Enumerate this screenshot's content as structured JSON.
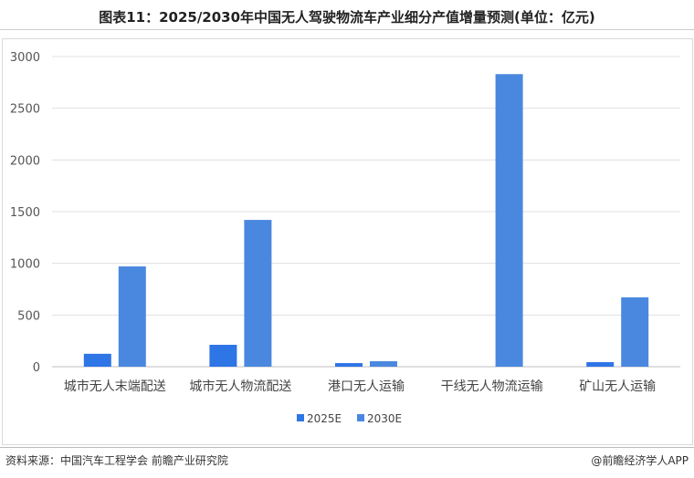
{
  "title": "图表11：2025/2030年中国无人驾驶物流车产业细分产值增量预测(单位：亿元)",
  "source": "资料来源：中国汽车工程学会 前瞻产业研究院",
  "brand": "@前瞻经济学人APP",
  "watermark": "前瞻产业研究院",
  "chart_data": {
    "type": "bar",
    "title": "图表11：2025/2030年中国无人驾驶物流车产业细分产值增量预测(单位：亿元)",
    "categories": [
      "城市无人末端配送",
      "城市无人物流配送",
      "港口无人运输",
      "干线无人物流运输",
      "矿山无人运输"
    ],
    "series": [
      {
        "name": "2025E",
        "color": "#2e75e6",
        "values": [
          125,
          212,
          35,
          0,
          44
        ]
      },
      {
        "name": "2030E",
        "color": "#4a88e0",
        "values": [
          970,
          1420,
          53,
          2830,
          671
        ]
      }
    ],
    "yticks": [
      0,
      500,
      1000,
      1500,
      2000,
      2500,
      3000
    ],
    "ylim": [
      0,
      3000
    ],
    "grid": true,
    "legend": "bottom",
    "xlabel": "",
    "ylabel": ""
  }
}
